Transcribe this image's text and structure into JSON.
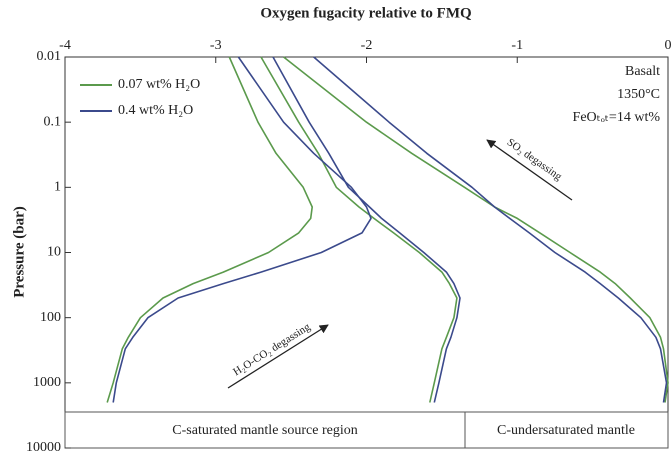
{
  "chart_data": {
    "type": "line",
    "title": "Oxygen fugacity relative to FMQ",
    "y_label": "Pressure (bar)",
    "xlim": [
      -4,
      0
    ],
    "xticks": [
      -4,
      -3,
      -2,
      -1,
      0
    ],
    "ylim": [
      0.01,
      10000
    ],
    "yticks": [
      0.01,
      0.1,
      1,
      10,
      100,
      1000,
      10000
    ],
    "y_log": true,
    "y_inverted": true,
    "x_axis_position": "top",
    "legend_position": "upper left",
    "pressures": [
      0.01,
      0.1,
      0.3,
      1,
      2,
      3,
      5,
      10,
      20,
      30,
      50,
      100,
      200,
      300,
      1000,
      2000
    ],
    "series": [
      {
        "name": "0.07 wt% H₂O",
        "color": "#5b9a4c",
        "lines": [
          [
            -2.91,
            -2.72,
            -2.6,
            -2.42,
            -2.36,
            -2.37,
            -2.45,
            -2.65,
            -2.95,
            -3.15,
            -3.35,
            -3.5,
            -3.58,
            -3.62,
            -3.68,
            -3.72
          ],
          [
            -2.7,
            -2.45,
            -2.32,
            -2.2,
            -2.05,
            -1.95,
            -1.82,
            -1.65,
            -1.5,
            -1.45,
            -1.4,
            -1.42,
            -1.47,
            -1.5,
            -1.55,
            -1.58
          ],
          [
            -2.55,
            -2.0,
            -1.7,
            -1.35,
            -1.15,
            -1.0,
            -0.85,
            -0.65,
            -0.45,
            -0.35,
            -0.25,
            -0.12,
            -0.05,
            -0.03,
            0.0,
            -0.02
          ]
        ]
      },
      {
        "name": "0.4 wt% H₂O",
        "color": "#3b4a8c",
        "lines": [
          [
            -2.85,
            -2.55,
            -2.35,
            -2.1,
            -2.0,
            -1.97,
            -2.03,
            -2.3,
            -2.7,
            -2.95,
            -3.25,
            -3.45,
            -3.55,
            -3.6,
            -3.66,
            -3.68
          ],
          [
            -2.62,
            -2.38,
            -2.25,
            -2.12,
            -1.98,
            -1.9,
            -1.78,
            -1.62,
            -1.47,
            -1.42,
            -1.38,
            -1.4,
            -1.44,
            -1.47,
            -1.52,
            -1.55
          ],
          [
            -2.35,
            -1.85,
            -1.6,
            -1.3,
            -1.15,
            -1.05,
            -0.92,
            -0.75,
            -0.55,
            -0.45,
            -0.33,
            -0.18,
            -0.08,
            -0.05,
            -0.01,
            -0.03
          ]
        ]
      }
    ],
    "annotations": [
      "Basalt",
      "1350°C",
      "FeOₜₒₜ=14 wt%",
      "SO₂ degassing",
      "H₂O-CO₂ degassing"
    ],
    "regions": [
      "C-saturated mantle source region",
      "C-undersaturated mantle"
    ]
  }
}
